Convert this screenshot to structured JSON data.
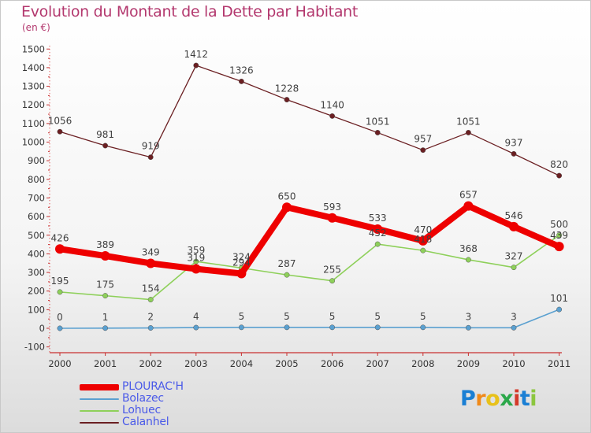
{
  "chart_data": {
    "type": "line",
    "title": "Evolution du Montant de la Dette par Habitant",
    "subtitle": "(en €)",
    "x": [
      "2000",
      "2001",
      "2002",
      "2003",
      "2004",
      "2005",
      "2006",
      "2007",
      "2008",
      "2009",
      "2010",
      "2011"
    ],
    "ylim": [
      -100,
      1500
    ],
    "yticks": [
      -100,
      0,
      100,
      200,
      300,
      400,
      500,
      600,
      700,
      800,
      900,
      1000,
      1100,
      1200,
      1300,
      1400,
      1500
    ],
    "grid": false,
    "legend_position": "bottom-left",
    "series": [
      {
        "name": "PLOURAC'H",
        "color": "#ee0000",
        "values": [
          426,
          389,
          349,
          319,
          294,
          650,
          593,
          533,
          470,
          657,
          546,
          439
        ]
      },
      {
        "name": "Bolazec",
        "color": "#5aa0d0",
        "values": [
          0,
          1,
          2,
          4,
          5,
          5,
          5,
          5,
          5,
          3,
          3,
          101
        ]
      },
      {
        "name": "Lohuec",
        "color": "#8ed05a",
        "values": [
          195,
          175,
          154,
          359,
          324,
          287,
          255,
          452,
          418,
          368,
          327,
          500
        ]
      },
      {
        "name": "Calanhel",
        "color": "#6b1f22",
        "values": [
          1056,
          981,
          919,
          1412,
          1326,
          1228,
          1140,
          1051,
          957,
          1051,
          937,
          820
        ]
      }
    ]
  },
  "brand": {
    "text": "Proxiti",
    "letters": [
      "P",
      "r",
      "o",
      "x",
      "i",
      "t",
      "i"
    ],
    "colors": [
      "#1a7fd4",
      "#f08a1a",
      "#e8c11a",
      "#2ba84a",
      "#d43a2a",
      "#1a7fd4",
      "#8cc63f"
    ]
  }
}
